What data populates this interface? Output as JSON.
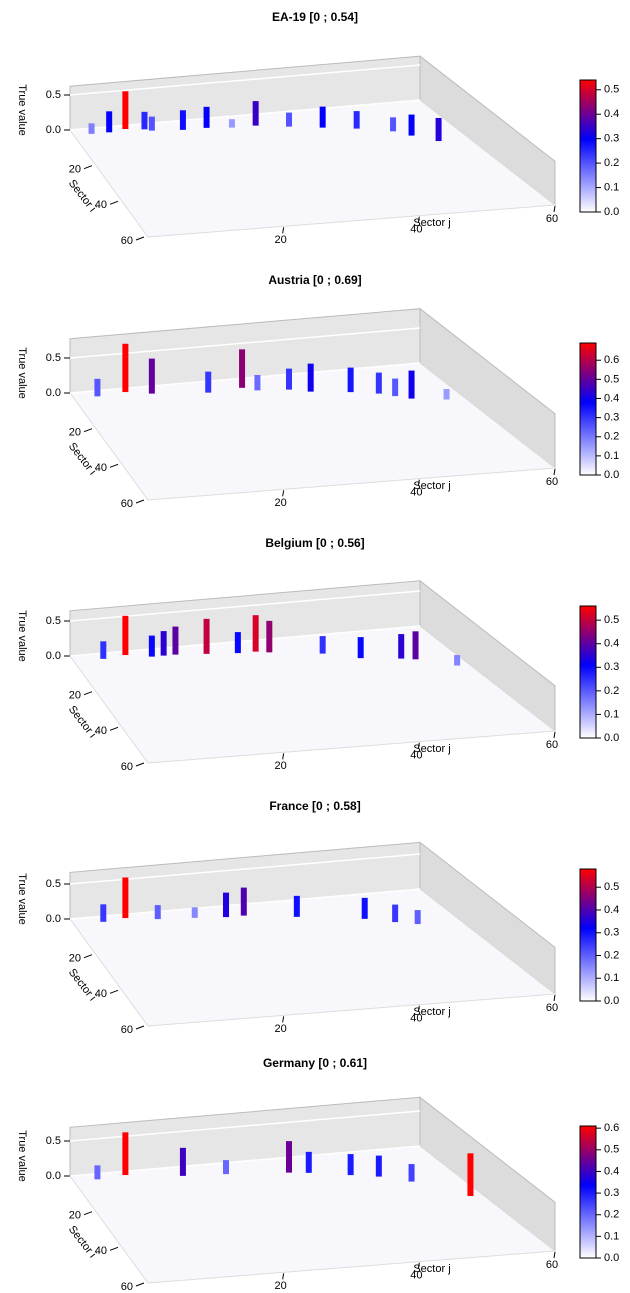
{
  "chart_data": [
    {
      "type": "bar3d",
      "title": "EA-19 [0 ; 0.54]",
      "zlabel": "True value",
      "xlabel": "Sector j",
      "ylabel": "Sector i",
      "zlim": [
        0,
        0.54
      ],
      "zticks": [
        {
          "value": 0,
          "label": "0.0"
        },
        {
          "value": 0.5,
          "label": "0.5"
        }
      ],
      "xticks": [
        20,
        40,
        60
      ],
      "yticks": [
        20,
        40,
        60
      ],
      "colorscale": [
        "#ffffff",
        "#0000ff",
        "#ff0000"
      ],
      "cbticks": [
        {
          "value": 0,
          "label": "0.0"
        },
        {
          "value": 0.1,
          "label": "0.1"
        },
        {
          "value": 0.2,
          "label": "0.2"
        },
        {
          "value": 0.3,
          "label": "0.3"
        },
        {
          "value": 0.4,
          "label": "0.4"
        },
        {
          "value": 0.5,
          "label": "0.5"
        }
      ],
      "bars": [
        {
          "i": 2,
          "j": 9,
          "value": 0.54
        },
        {
          "i": 3,
          "j": 6,
          "value": 0.3
        },
        {
          "i": 3,
          "j": 12,
          "value": 0.25
        },
        {
          "i": 4,
          "j": 13,
          "value": 0.2
        },
        {
          "i": 5,
          "j": 18,
          "value": 0.28
        },
        {
          "i": 5,
          "j": 22,
          "value": 0.3
        },
        {
          "i": 6,
          "j": 30,
          "value": 0.35
        },
        {
          "i": 8,
          "j": 35,
          "value": 0.2
        },
        {
          "i": 10,
          "j": 40,
          "value": 0.3
        },
        {
          "i": 12,
          "j": 45,
          "value": 0.25
        },
        {
          "i": 15,
          "j": 50,
          "value": 0.2
        },
        {
          "i": 18,
          "j": 52,
          "value": 0.3
        },
        {
          "i": 22,
          "j": 55,
          "value": 0.33
        },
        {
          "i": 3,
          "j": 3,
          "value": 0.15
        },
        {
          "i": 6,
          "j": 26,
          "value": 0.12
        }
      ]
    },
    {
      "type": "bar3d",
      "title": "Austria [0 ; 0.69]",
      "zlabel": "True value",
      "xlabel": "Sector j",
      "ylabel": "Sector i",
      "zlim": [
        0,
        0.69
      ],
      "zticks": [
        {
          "value": 0,
          "label": "0.0"
        },
        {
          "value": 0.5,
          "label": "0.5"
        }
      ],
      "xticks": [
        20,
        40,
        60
      ],
      "yticks": [
        20,
        40,
        60
      ],
      "colorscale": [
        "#ffffff",
        "#0000ff",
        "#ff0000"
      ],
      "cbticks": [
        {
          "value": 0,
          "label": "0.0"
        },
        {
          "value": 0.1,
          "label": "0.1"
        },
        {
          "value": 0.2,
          "label": "0.2"
        },
        {
          "value": 0.3,
          "label": "0.3"
        },
        {
          "value": 0.4,
          "label": "0.4"
        },
        {
          "value": 0.5,
          "label": "0.5"
        },
        {
          "value": 0.6,
          "label": "0.6"
        }
      ],
      "bars": [
        {
          "i": 2,
          "j": 9,
          "value": 0.69
        },
        {
          "i": 4,
          "j": 13,
          "value": 0.5
        },
        {
          "i": 5,
          "j": 28,
          "value": 0.55
        },
        {
          "i": 6,
          "j": 22,
          "value": 0.3
        },
        {
          "i": 8,
          "j": 35,
          "value": 0.3
        },
        {
          "i": 10,
          "j": 38,
          "value": 0.4
        },
        {
          "i": 3,
          "j": 4,
          "value": 0.25
        },
        {
          "i": 12,
          "j": 44,
          "value": 0.35
        },
        {
          "i": 14,
          "j": 48,
          "value": 0.3
        },
        {
          "i": 18,
          "j": 52,
          "value": 0.4
        },
        {
          "i": 16,
          "j": 50,
          "value": 0.25
        },
        {
          "i": 7,
          "j": 30,
          "value": 0.22
        },
        {
          "i": 20,
          "j": 57,
          "value": 0.15
        }
      ]
    },
    {
      "type": "bar3d",
      "title": "Belgium [0 ; 0.56]",
      "zlabel": "True value",
      "xlabel": "Sector j",
      "ylabel": "Sector i",
      "zlim": [
        0,
        0.56
      ],
      "zticks": [
        {
          "value": 0,
          "label": "0.0"
        },
        {
          "value": 0.5,
          "label": "0.5"
        }
      ],
      "xticks": [
        20,
        40,
        60
      ],
      "yticks": [
        20,
        40,
        60
      ],
      "colorscale": [
        "#ffffff",
        "#0000ff",
        "#ff0000"
      ],
      "cbticks": [
        {
          "value": 0,
          "label": "0.0"
        },
        {
          "value": 0.1,
          "label": "0.1"
        },
        {
          "value": 0.2,
          "label": "0.2"
        },
        {
          "value": 0.3,
          "label": "0.3"
        },
        {
          "value": 0.4,
          "label": "0.4"
        },
        {
          "value": 0.5,
          "label": "0.5"
        }
      ],
      "bars": [
        {
          "i": 2,
          "j": 9,
          "value": 0.56
        },
        {
          "i": 3,
          "j": 5,
          "value": 0.25
        },
        {
          "i": 4,
          "j": 13,
          "value": 0.3
        },
        {
          "i": 4,
          "j": 17,
          "value": 0.4
        },
        {
          "i": 5,
          "j": 22,
          "value": 0.5
        },
        {
          "i": 6,
          "j": 30,
          "value": 0.52
        },
        {
          "i": 7,
          "j": 32,
          "value": 0.45
        },
        {
          "i": 6,
          "j": 27,
          "value": 0.3
        },
        {
          "i": 10,
          "j": 40,
          "value": 0.25
        },
        {
          "i": 14,
          "j": 45,
          "value": 0.3
        },
        {
          "i": 16,
          "j": 51,
          "value": 0.35
        },
        {
          "i": 17,
          "j": 53,
          "value": 0.4
        },
        {
          "i": 22,
          "j": 58,
          "value": 0.15
        },
        {
          "i": 4,
          "j": 15,
          "value": 0.35
        }
      ]
    },
    {
      "type": "bar3d",
      "title": "France [0 ; 0.58]",
      "zlabel": "True value",
      "xlabel": "Sector j",
      "ylabel": "Sector i",
      "zlim": [
        0,
        0.58
      ],
      "zticks": [
        {
          "value": 0,
          "label": "0.0"
        },
        {
          "value": 0.5,
          "label": "0.5"
        }
      ],
      "xticks": [
        20,
        40,
        60
      ],
      "yticks": [
        20,
        40,
        60
      ],
      "colorscale": [
        "#ffffff",
        "#0000ff",
        "#ff0000"
      ],
      "cbticks": [
        {
          "value": 0,
          "label": "0.0"
        },
        {
          "value": 0.1,
          "label": "0.1"
        },
        {
          "value": 0.2,
          "label": "0.2"
        },
        {
          "value": 0.3,
          "label": "0.3"
        },
        {
          "value": 0.4,
          "label": "0.4"
        },
        {
          "value": 0.5,
          "label": "0.5"
        }
      ],
      "bars": [
        {
          "i": 2,
          "j": 9,
          "value": 0.58
        },
        {
          "i": 3,
          "j": 5,
          "value": 0.25
        },
        {
          "i": 4,
          "j": 14,
          "value": 0.2
        },
        {
          "i": 6,
          "j": 25,
          "value": 0.35
        },
        {
          "i": 6,
          "j": 28,
          "value": 0.4
        },
        {
          "i": 9,
          "j": 36,
          "value": 0.3
        },
        {
          "i": 13,
          "j": 46,
          "value": 0.3
        },
        {
          "i": 16,
          "j": 50,
          "value": 0.25
        },
        {
          "i": 18,
          "j": 53,
          "value": 0.2
        },
        {
          "i": 5,
          "j": 20,
          "value": 0.15
        }
      ]
    },
    {
      "type": "bar3d",
      "title": "Germany [0 ; 0.61]",
      "zlabel": "True value",
      "xlabel": "Sector j",
      "ylabel": "Sector i",
      "zlim": [
        0,
        0.61
      ],
      "zticks": [
        {
          "value": 0,
          "label": "0.0"
        },
        {
          "value": 0.5,
          "label": "0.5"
        }
      ],
      "xticks": [
        20,
        40,
        60
      ],
      "yticks": [
        20,
        40,
        60
      ],
      "colorscale": [
        "#ffffff",
        "#0000ff",
        "#ff0000"
      ],
      "cbticks": [
        {
          "value": 0,
          "label": "0.0"
        },
        {
          "value": 0.1,
          "label": "0.1"
        },
        {
          "value": 0.2,
          "label": "0.2"
        },
        {
          "value": 0.3,
          "label": "0.3"
        },
        {
          "value": 0.4,
          "label": "0.4"
        },
        {
          "value": 0.5,
          "label": "0.5"
        },
        {
          "value": 0.6,
          "label": "0.6"
        }
      ],
      "bars": [
        {
          "i": 2,
          "j": 9,
          "value": 0.61
        },
        {
          "i": 5,
          "j": 18,
          "value": 0.4
        },
        {
          "i": 8,
          "j": 35,
          "value": 0.45
        },
        {
          "i": 9,
          "j": 38,
          "value": 0.3
        },
        {
          "i": 12,
          "j": 44,
          "value": 0.3
        },
        {
          "i": 14,
          "j": 48,
          "value": 0.3
        },
        {
          "i": 18,
          "j": 52,
          "value": 0.25
        },
        {
          "i": 28,
          "j": 58,
          "value": 0.61
        },
        {
          "i": 3,
          "j": 4,
          "value": 0.2
        },
        {
          "i": 6,
          "j": 25,
          "value": 0.2
        }
      ]
    }
  ]
}
